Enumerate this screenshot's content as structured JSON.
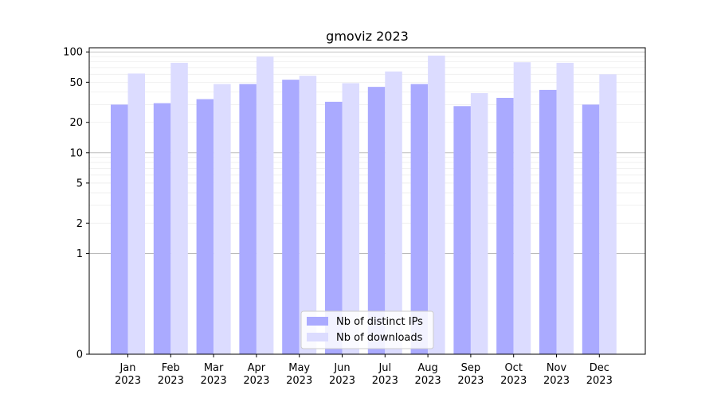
{
  "chart_data": {
    "type": "bar",
    "title": "gmoviz 2023",
    "xlabel": "",
    "ylabel": "",
    "y_scale": "symlog",
    "yticks": [
      0,
      1,
      2,
      5,
      10,
      20,
      50,
      100
    ],
    "ylim": [
      0,
      110
    ],
    "grid": true,
    "legend_position": "bottom-center",
    "categories": [
      [
        "Jan",
        "2023"
      ],
      [
        "Feb",
        "2023"
      ],
      [
        "Mar",
        "2023"
      ],
      [
        "Apr",
        "2023"
      ],
      [
        "May",
        "2023"
      ],
      [
        "Jun",
        "2023"
      ],
      [
        "Jul",
        "2023"
      ],
      [
        "Aug",
        "2023"
      ],
      [
        "Sep",
        "2023"
      ],
      [
        "Oct",
        "2023"
      ],
      [
        "Nov",
        "2023"
      ],
      [
        "Dec",
        "2023"
      ]
    ],
    "series": [
      {
        "name": "Nb of distinct IPs",
        "color": "#aaaaff",
        "values": [
          30,
          31,
          34,
          48,
          53,
          32,
          45,
          48,
          29,
          35,
          42,
          30
        ]
      },
      {
        "name": "Nb of downloads",
        "color": "#dcdcff",
        "values": [
          61,
          78,
          48,
          90,
          58,
          49,
          64,
          92,
          39,
          79,
          78,
          60
        ]
      }
    ]
  }
}
